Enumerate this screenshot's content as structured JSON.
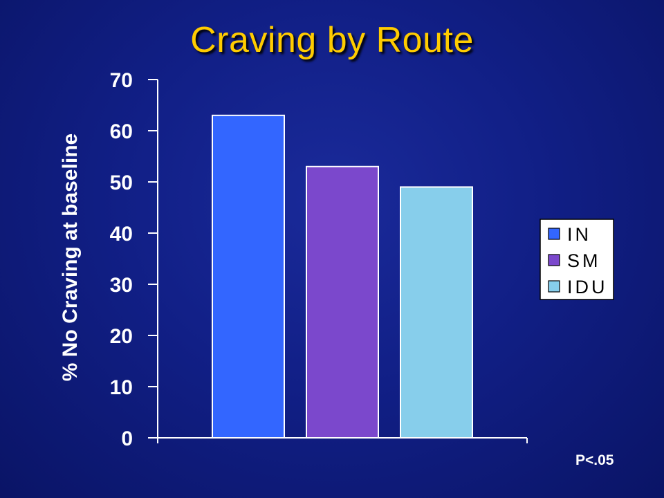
{
  "slide": {
    "title": "Craving by Route",
    "footnote": "P<.05"
  },
  "colors": {
    "title": "#ffcc00",
    "axis_text": "#ffffff",
    "background": "#111f86"
  },
  "chart_data": {
    "type": "bar",
    "title": "",
    "xlabel": "",
    "ylabel": "% No Craving at baseline",
    "ylim": [
      0,
      70
    ],
    "yticks": [
      0,
      10,
      20,
      30,
      40,
      50,
      60,
      70
    ],
    "grid": false,
    "legend_position": "right",
    "series": [
      {
        "name": "IN",
        "values": [
          63
        ],
        "color": "#3366ff"
      },
      {
        "name": "SM",
        "values": [
          53
        ],
        "color": "#7b48cc"
      },
      {
        "name": "IDU",
        "values": [
          49
        ],
        "color": "#87ceeb"
      }
    ]
  }
}
